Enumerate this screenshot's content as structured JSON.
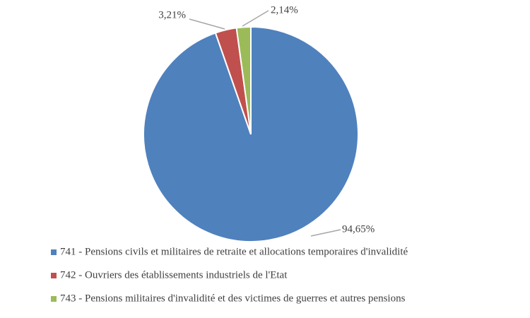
{
  "chart_data": {
    "type": "pie",
    "categories": [
      "741 - Pensions civils et militaires de retraite et allocations temporaires d'invalidité",
      "742 - Ouvriers des établissements industriels de l'Etat",
      "743 - Pensions militaires d'invalidité et des victimes de guerres et autres pensions"
    ],
    "values": [
      94.65,
      3.21,
      2.14
    ],
    "value_labels": [
      "94,65%",
      "3,21%",
      "2,14%"
    ],
    "colors": [
      "#4f81bd",
      "#c0504d",
      "#9bbb59"
    ],
    "legend": "bottom"
  }
}
